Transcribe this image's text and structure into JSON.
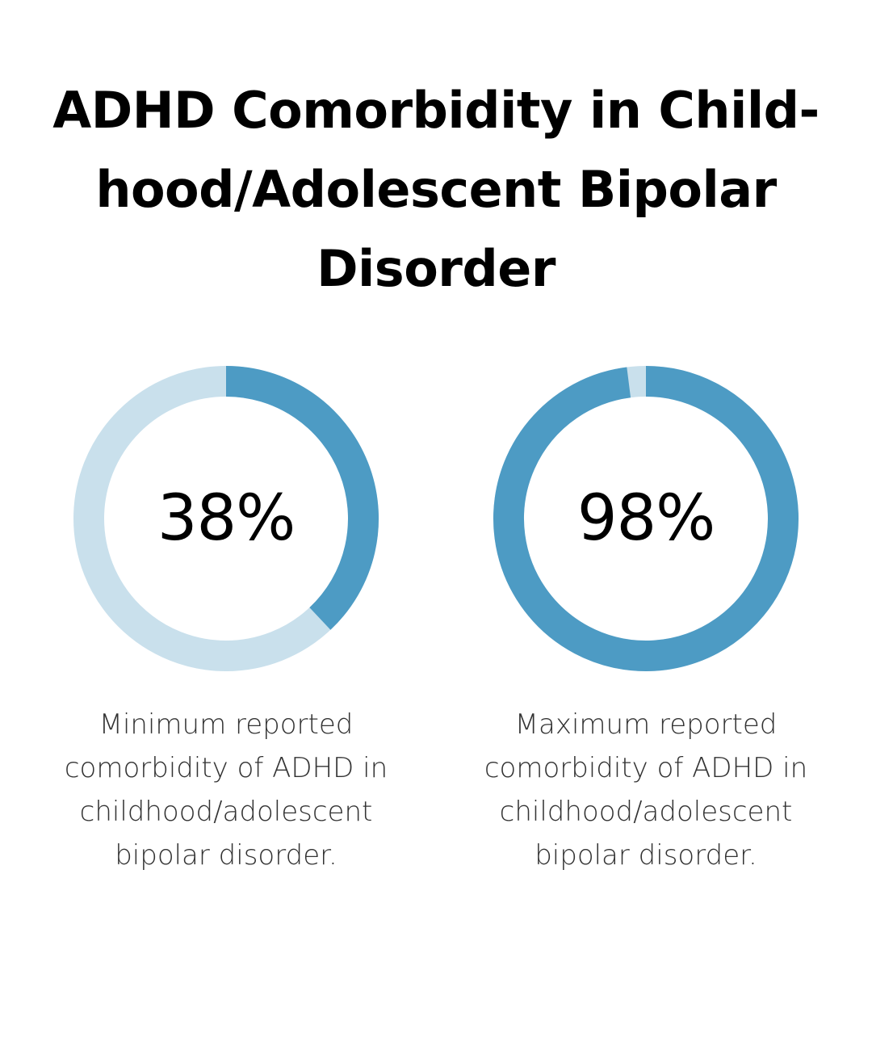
{
  "title_lines": [
    "ADHD Comorbidity in Child-",
    "hood/Adolescent Bipolar",
    "Disorder"
  ],
  "colors": {
    "filled": "#4d9bc4",
    "track": "#c9e0ec",
    "text": "#000000",
    "caption": "#333333"
  },
  "chart_data": [
    {
      "type": "pie",
      "variant": "donut",
      "values": [
        38,
        62
      ],
      "value_label": "38%",
      "caption_lines": [
        "Minimum reported",
        "comorbidity of ADHD in",
        "childhood/adolescent",
        "bipolar disorder."
      ]
    },
    {
      "type": "pie",
      "variant": "donut",
      "values": [
        98,
        2
      ],
      "value_label": "98%",
      "caption_lines": [
        "Maximum reported",
        "comorbidity of ADHD in",
        "childhood/adolescent",
        "bipolar disorder."
      ]
    }
  ]
}
